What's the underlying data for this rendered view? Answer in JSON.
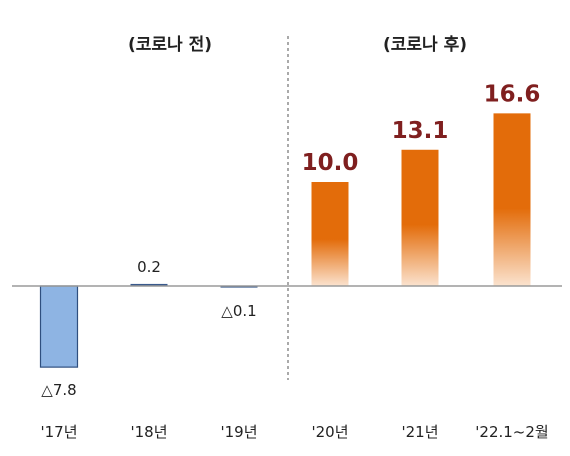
{
  "sections": {
    "before": "(코로나 전)",
    "after": "(코로나 후)"
  },
  "colors": {
    "negative_fill": "#8EB4E3",
    "negative_stroke": "#2F4F7F",
    "small_bar": "#3A5A8C",
    "orange_top": "#E36C0A",
    "orange_bottom": "#FBE3CF",
    "highlight_label": "#7F1F1F",
    "plain_label": "#222222",
    "axis": "#9A9A9A"
  },
  "chart_data": {
    "type": "bar",
    "categories": [
      "'17년",
      "'18년",
      "'19년",
      "'20년",
      "'21년",
      "'22.1~2월"
    ],
    "values": [
      -7.8,
      0.2,
      -0.1,
      10.0,
      13.1,
      16.6
    ],
    "data_labels": [
      "△7.8",
      "0.2",
      "△0.1",
      "10.0",
      "13.1",
      "16.6"
    ],
    "groups": [
      {
        "label": "(코로나 전)",
        "categories": [
          "'17년",
          "'18년",
          "'19년"
        ]
      },
      {
        "label": "(코로나 후)",
        "categories": [
          "'20년",
          "'21년",
          "'22.1~2월"
        ]
      }
    ],
    "title": "",
    "xlabel": "",
    "ylabel": ""
  }
}
